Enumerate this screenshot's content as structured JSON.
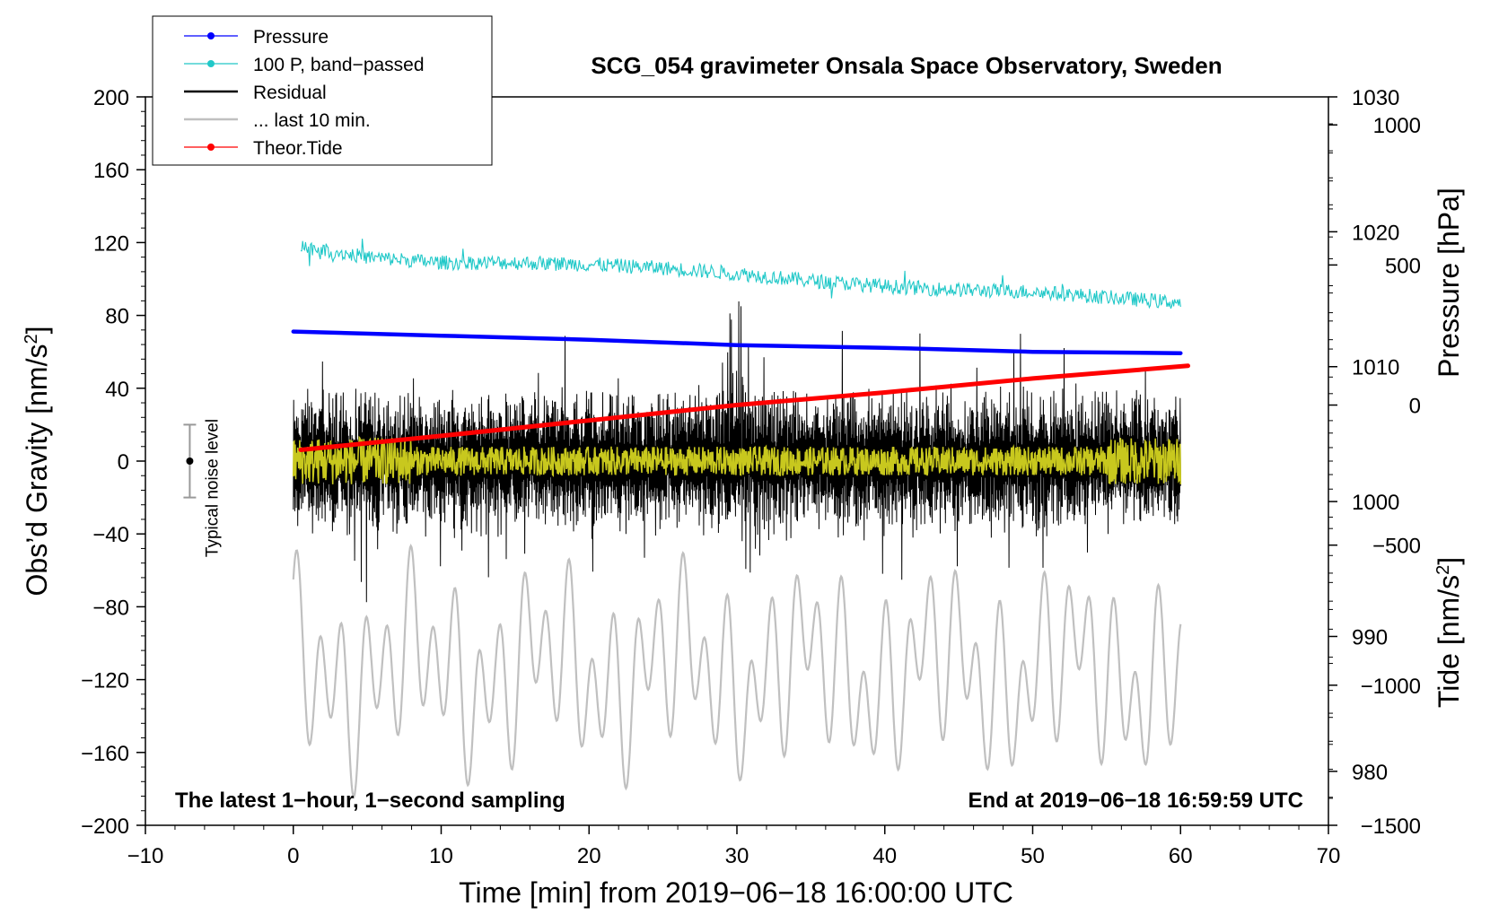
{
  "chart_data": {
    "type": "line",
    "title": "SCG_054 gravimeter Onsala Space Observatory, Sweden",
    "xlabel": "Time [min] from 2019−06−18 16:00:00 UTC",
    "ylabel_left_main": "Obs’d Gravity [nm/s",
    "ylabel_left_sup": "2",
    "ylabel_left_end": "]",
    "ylabel_right_pressure": "Pressure [hPa]",
    "ylabel_right_tide_main": "Tide [nm/s",
    "ylabel_right_tide_sup": "2",
    "ylabel_right_tide_end": "]",
    "xlim": [
      -10,
      70
    ],
    "ylim": [
      -200,
      200
    ],
    "pressure_axis_range": [
      976,
      1030
    ],
    "tide_axis_range": [
      -1500,
      1100
    ],
    "x_ticks": [
      "−10",
      "0",
      "10",
      "20",
      "30",
      "40",
      "50",
      "60",
      "70"
    ],
    "x_tick_values": [
      -10,
      0,
      10,
      20,
      30,
      40,
      50,
      60,
      70
    ],
    "y_ticks": [
      "200",
      "160",
      "120",
      "80",
      "40",
      "0",
      "−40",
      "−80",
      "−120",
      "−160",
      "−200"
    ],
    "y_tick_values": [
      200,
      160,
      120,
      80,
      40,
      0,
      -40,
      -80,
      -120,
      -160,
      -200
    ],
    "pressure_ticks": [
      "1030",
      "1020",
      "1010",
      "1000",
      "990",
      "980"
    ],
    "pressure_tick_values": [
      1030,
      1020,
      1010,
      1000,
      990,
      980
    ],
    "tide_ticks": [
      "1000",
      "500",
      "0",
      "−500",
      "−1000",
      "−1500"
    ],
    "tide_tick_values": [
      1000,
      500,
      0,
      -500,
      -1000,
      -1500
    ],
    "bottom_left_note": "The latest 1−hour, 1−second sampling",
    "bottom_right_note": "End at 2019−06−18 16:59:59 UTC",
    "noise_label": "Typical noise level",
    "noise_bar": {
      "x": -7,
      "center": 0,
      "half_range": 20
    },
    "legend": [
      {
        "label": "Pressure",
        "color": "#0000ff",
        "marker": true
      },
      {
        "label": "100 P, band−passed",
        "color": "#20c8c8",
        "marker": true
      },
      {
        "label": "Residual",
        "color": "#000000",
        "marker": false
      },
      {
        "label": "... last 10 min.",
        "color": "#c0c0c0",
        "marker": false
      },
      {
        "label": "Theor.Tide",
        "color": "#ff0000",
        "marker": true
      }
    ],
    "series": [
      {
        "name": "Pressure",
        "axis": "pressure",
        "color": "#0000ff",
        "x": [
          0,
          10,
          20,
          30,
          40,
          50,
          60
        ],
        "values": [
          1012.6,
          1012.3,
          1012.0,
          1011.6,
          1011.4,
          1011.1,
          1011.0
        ]
      },
      {
        "name": "100 P, band−passed",
        "axis": "gravity",
        "color": "#20c8c8",
        "x": [
          0.5,
          5,
          10,
          15,
          20,
          25,
          30,
          35,
          40,
          45,
          50,
          55,
          60
        ],
        "values": [
          118,
          112,
          109,
          109,
          108,
          106,
          103,
          99,
          96,
          94,
          93,
          90,
          87
        ]
      },
      {
        "name": "Residual",
        "axis": "gravity",
        "color": "#000000",
        "x_range": [
          0,
          60
        ],
        "amplitude": 38
      },
      {
        "name": "Residual (smoothed)",
        "axis": "gravity",
        "color": "#c8c81e",
        "x_range": [
          0,
          60
        ],
        "amplitude": 10
      },
      {
        "name": "... last 10 min.",
        "axis": "gravity",
        "color": "#c0c0c0",
        "x_range": [
          0,
          60
        ],
        "center": -115,
        "amplitude": 45
      },
      {
        "name": "Theor.Tide",
        "axis": "tide",
        "color": "#ff0000",
        "x": [
          0.5,
          10,
          20,
          30,
          40,
          50,
          60.5
        ],
        "values": [
          -160,
          -110,
          -55,
          0,
          45,
          95,
          140
        ]
      }
    ]
  }
}
